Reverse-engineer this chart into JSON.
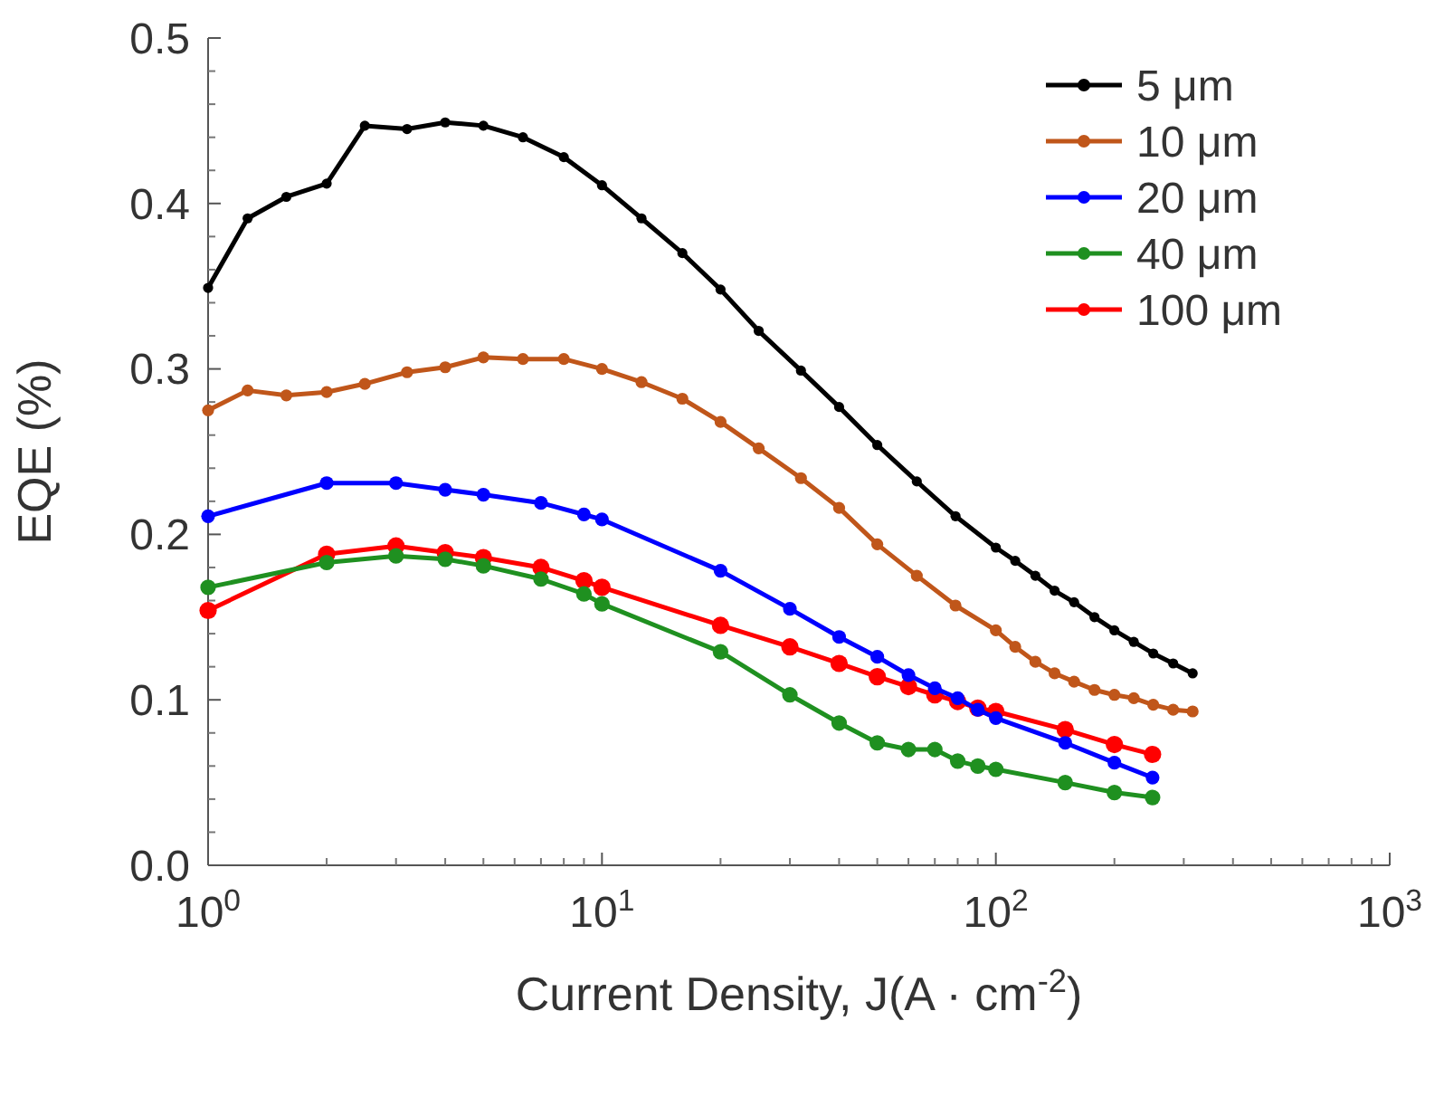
{
  "chart_data": {
    "type": "line",
    "xlabel": "Current Density, J(A · cm$^{-2}$)",
    "ylabel": "EQE (%)",
    "log": "x",
    "xlim": [
      1,
      1000
    ],
    "ylim": [
      0,
      0.5
    ],
    "xticks": [
      {
        "value": 1,
        "label": "10$^{0}$"
      },
      {
        "value": 10,
        "label": "10$^{1}$"
      },
      {
        "value": 100,
        "label": "10$^{2}$"
      },
      {
        "value": 1000,
        "label": "10$^{3}$"
      }
    ],
    "yticks": [
      {
        "value": 0,
        "label": "0.0"
      },
      {
        "value": 0.1,
        "label": "0.1"
      },
      {
        "value": 0.2,
        "label": "0.2"
      },
      {
        "value": 0.3,
        "label": "0.3"
      },
      {
        "value": 0.4,
        "label": "0.4"
      },
      {
        "value": 0.5,
        "label": "0.5"
      }
    ],
    "legend": "top right",
    "marker": "circle",
    "line_style": "solid",
    "series": [
      {
        "name": "5 μm",
        "color": "#000000",
        "x": [
          1,
          1.26,
          1.58,
          2,
          2.5,
          3.2,
          4,
          5,
          6.3,
          8,
          10,
          12.6,
          16,
          20,
          25,
          32,
          40,
          50,
          63,
          79,
          100,
          112,
          126,
          141,
          158,
          178,
          200,
          224,
          251,
          282,
          316
        ],
        "values": [
          0.349,
          0.391,
          0.404,
          0.412,
          0.447,
          0.445,
          0.449,
          0.447,
          0.44,
          0.428,
          0.411,
          0.391,
          0.37,
          0.348,
          0.323,
          0.299,
          0.277,
          0.254,
          0.232,
          0.211,
          0.192,
          0.184,
          0.175,
          0.166,
          0.159,
          0.15,
          0.142,
          0.135,
          0.128,
          0.122,
          0.116
        ]
      },
      {
        "name": "10 μm",
        "color": "#c0561a",
        "x": [
          1,
          1.26,
          1.58,
          2,
          2.5,
          3.2,
          4,
          5,
          6.3,
          8,
          10,
          12.6,
          16,
          20,
          25,
          32,
          40,
          50,
          63,
          79,
          100,
          112,
          126,
          141,
          158,
          178,
          200,
          224,
          251,
          282,
          316
        ],
        "values": [
          0.275,
          0.287,
          0.284,
          0.286,
          0.291,
          0.298,
          0.301,
          0.307,
          0.306,
          0.306,
          0.3,
          0.292,
          0.282,
          0.268,
          0.252,
          0.234,
          0.216,
          0.194,
          0.175,
          0.157,
          0.142,
          0.132,
          0.123,
          0.116,
          0.111,
          0.106,
          0.103,
          0.101,
          0.097,
          0.094,
          0.093
        ]
      },
      {
        "name": "20 μm",
        "color": "#0000ff",
        "x": [
          1,
          2,
          3,
          4,
          5,
          7,
          9,
          10,
          20,
          30,
          40,
          50,
          60,
          70,
          80,
          90,
          100,
          150,
          200,
          250
        ],
        "values": [
          0.211,
          0.231,
          0.231,
          0.227,
          0.224,
          0.219,
          0.212,
          0.209,
          0.178,
          0.155,
          0.138,
          0.126,
          0.115,
          0.107,
          0.101,
          0.094,
          0.089,
          0.074,
          0.062,
          0.053
        ]
      },
      {
        "name": "40 μm",
        "color": "#1f9020",
        "x": [
          1,
          2,
          3,
          4,
          5,
          7,
          9,
          10,
          20,
          30,
          40,
          50,
          60,
          70,
          80,
          90,
          100,
          150,
          200,
          250
        ],
        "values": [
          0.168,
          0.183,
          0.187,
          0.185,
          0.181,
          0.173,
          0.164,
          0.158,
          0.129,
          0.103,
          0.086,
          0.074,
          0.07,
          0.07,
          0.063,
          0.06,
          0.058,
          0.05,
          0.044,
          0.041
        ]
      },
      {
        "name": "100 μm",
        "color": "#ff0000",
        "x": [
          1,
          2,
          3,
          4,
          5,
          7,
          9,
          10,
          20,
          30,
          40,
          50,
          60,
          70,
          80,
          90,
          100,
          150,
          200,
          250
        ],
        "values": [
          0.154,
          0.188,
          0.193,
          0.189,
          0.186,
          0.18,
          0.172,
          0.168,
          0.145,
          0.132,
          0.122,
          0.114,
          0.108,
          0.103,
          0.099,
          0.095,
          0.093,
          0.082,
          0.073,
          0.067
        ]
      }
    ]
  }
}
